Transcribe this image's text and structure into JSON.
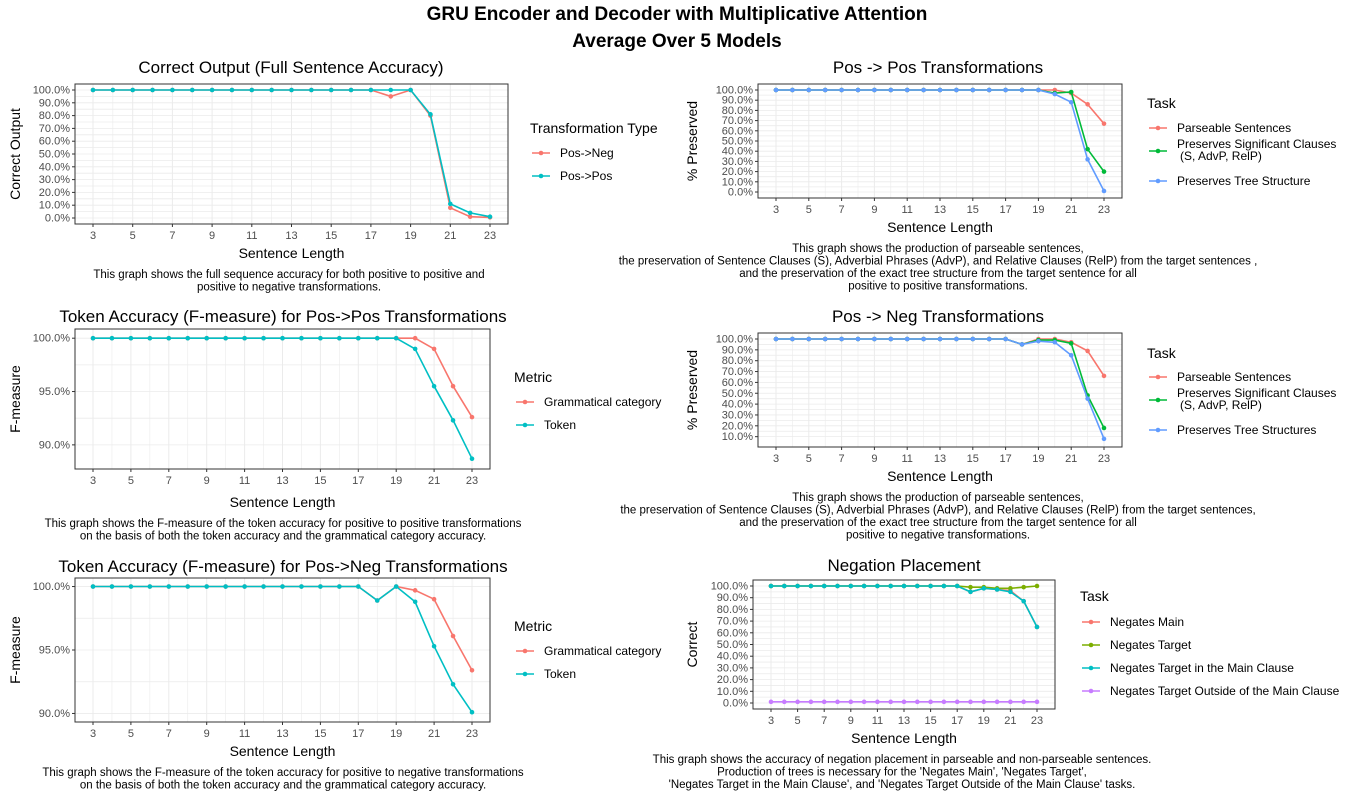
{
  "figure": {
    "title_line1": "GRU Encoder and Decoder with Multiplicative Attention",
    "title_line2": "Average Over 5 Models"
  },
  "colors": {
    "red": "#F8766D",
    "teal": "#00BFC4",
    "green": "#00BA38",
    "blue": "#619CFF",
    "olive": "#7CAE00",
    "purple": "#C77CFF",
    "grid": "#EBEBEB"
  },
  "chart_data": [
    {
      "id": "p1",
      "type": "line",
      "title": "Correct Output (Full Sentence Accuracy)",
      "xlabel": "Sentence Length",
      "ylabel": "Correct Output",
      "xlim": [
        3,
        23
      ],
      "ylim": [
        0,
        100
      ],
      "xticks": [
        3,
        5,
        7,
        9,
        11,
        13,
        15,
        17,
        19,
        21,
        23
      ],
      "yticks": [
        0,
        10,
        20,
        30,
        40,
        50,
        60,
        70,
        80,
        90,
        100
      ],
      "ytick_labels": [
        "0.0%",
        "10.0%",
        "20.0%",
        "30.0%",
        "40.0%",
        "50.0%",
        "60.0%",
        "70.0%",
        "80.0%",
        "90.0%",
        "100.0%"
      ],
      "grid": true,
      "legend_title": "Transformation Type",
      "caption": [
        "This graph shows the full sequence accuracy for both positive to positive and",
        "positive to negative transformations."
      ],
      "x": [
        3,
        4,
        5,
        6,
        7,
        8,
        9,
        10,
        11,
        12,
        13,
        14,
        15,
        16,
        17,
        18,
        19,
        20,
        21,
        22,
        23
      ],
      "series": [
        {
          "name": "Pos->Neg",
          "color": "red",
          "values": [
            100,
            100,
            100,
            100,
            100,
            100,
            100,
            100,
            100,
            100,
            100,
            100,
            100,
            100,
            100,
            95,
            100,
            80,
            8,
            1,
            0.5
          ]
        },
        {
          "name": "Pos->Pos",
          "color": "teal",
          "values": [
            100,
            100,
            100,
            100,
            100,
            100,
            100,
            100,
            100,
            100,
            100,
            100,
            100,
            100,
            100,
            100,
            100,
            81,
            11,
            4,
            1
          ]
        }
      ]
    },
    {
      "id": "p2",
      "type": "line",
      "title": "Pos -> Pos Transformations",
      "xlabel": "Sentence Length",
      "ylabel": "% Preserved",
      "xlim": [
        3,
        23
      ],
      "ylim": [
        0,
        100
      ],
      "xticks": [
        3,
        5,
        7,
        9,
        11,
        13,
        15,
        17,
        19,
        21,
        23
      ],
      "yticks": [
        0,
        10,
        20,
        30,
        40,
        50,
        60,
        70,
        80,
        90,
        100
      ],
      "ytick_labels": [
        "0.0%",
        "10.0%",
        "20.0%",
        "30.0%",
        "40.0%",
        "50.0%",
        "60.0%",
        "70.0%",
        "80.0%",
        "90.0%",
        "100.0%"
      ],
      "grid": true,
      "legend_title": "Task",
      "caption": [
        "This graph shows the production of parseable sentences,",
        "the preservation of Sentence Clauses (S), Adverbial Phrases (AdvP), and Relative Clauses (RelP) from the target sentences ,",
        "and the preservation of the exact tree structure from the target sentence for all",
        "positive to positive transformations."
      ],
      "x": [
        3,
        4,
        5,
        6,
        7,
        8,
        9,
        10,
        11,
        12,
        13,
        14,
        15,
        16,
        17,
        18,
        19,
        20,
        21,
        22,
        23
      ],
      "series": [
        {
          "name": "Parseable Sentences",
          "label_lines": [
            "Parseable Sentences"
          ],
          "color": "red",
          "values": [
            100,
            100,
            100,
            100,
            100,
            100,
            100,
            100,
            100,
            100,
            100,
            100,
            100,
            100,
            100,
            100,
            100,
            100,
            97,
            86,
            67
          ]
        },
        {
          "name": "Preserves Significant Clauses (S, AdvP, RelP)",
          "label_lines": [
            "Preserves Significant Clauses",
            "(S, AdvP, RelP)"
          ],
          "color": "green",
          "values": [
            100,
            100,
            100,
            100,
            100,
            100,
            100,
            100,
            100,
            100,
            100,
            100,
            100,
            100,
            100,
            100,
            100,
            97,
            98,
            42,
            20
          ]
        },
        {
          "name": "Preserves Tree Structure",
          "label_lines": [
            "Preserves Tree Structure"
          ],
          "color": "blue",
          "values": [
            100,
            100,
            100,
            100,
            100,
            100,
            100,
            100,
            100,
            100,
            100,
            100,
            100,
            100,
            100,
            100,
            100,
            96,
            88,
            32,
            1
          ]
        }
      ]
    },
    {
      "id": "p3",
      "type": "line",
      "title": "Token Accuracy (F-measure) for Pos->Pos Transformations",
      "xlabel": "Sentence Length",
      "ylabel": "F-measure",
      "xlim": [
        3,
        23
      ],
      "ylim": [
        88.3,
        100.3
      ],
      "xticks": [
        3,
        5,
        7,
        9,
        11,
        13,
        15,
        17,
        19,
        21,
        23
      ],
      "yticks": [
        90,
        95,
        100
      ],
      "ytick_labels": [
        "90.0%",
        "95.0%",
        "100.0%"
      ],
      "grid": true,
      "legend_title": "Metric",
      "caption": [
        "This graph shows the F-measure of the token accuracy for positive to positive transformations",
        "on the basis of both the token accuracy and the grammatical category accuracy."
      ],
      "x": [
        3,
        4,
        5,
        6,
        7,
        8,
        9,
        10,
        11,
        12,
        13,
        14,
        15,
        16,
        17,
        18,
        19,
        20,
        21,
        22,
        23
      ],
      "series": [
        {
          "name": "Grammatical category",
          "color": "red",
          "values": [
            100,
            100,
            100,
            100,
            100,
            100,
            100,
            100,
            100,
            100,
            100,
            100,
            100,
            100,
            100,
            100,
            100,
            100,
            99,
            95.5,
            92.6
          ]
        },
        {
          "name": "Token",
          "color": "teal",
          "values": [
            100,
            100,
            100,
            100,
            100,
            100,
            100,
            100,
            100,
            100,
            100,
            100,
            100,
            100,
            100,
            100,
            100,
            99,
            95.5,
            92.3,
            88.7
          ]
        }
      ]
    },
    {
      "id": "p4",
      "type": "line",
      "title": "Pos -> Neg Transformations",
      "xlabel": "Sentence Length",
      "ylabel": "% Preserved",
      "xlim": [
        3,
        23
      ],
      "ylim": [
        0,
        100
      ],
      "xticks": [
        3,
        5,
        7,
        9,
        11,
        13,
        15,
        17,
        19,
        21,
        23
      ],
      "yticks": [
        10,
        20,
        30,
        40,
        50,
        60,
        70,
        80,
        90,
        100
      ],
      "ytick_labels": [
        "10.0%",
        "20.0%",
        "30.0%",
        "40.0%",
        "50.0%",
        "60.0%",
        "70.0%",
        "80.0%",
        "90.0%",
        "100.0%"
      ],
      "ylim_override": [
        6,
        100
      ],
      "grid": true,
      "legend_title": "Task",
      "caption": [
        "This graph shows the production of parseable sentences,",
        "the preservation of Sentence Clauses (S), Adverbial Phrases (AdvP), and Relative Clauses (RelP) from the target sentences,",
        "and the preservation of the exact tree structure from the target sentence for all",
        "positive to negative transformations."
      ],
      "x": [
        3,
        4,
        5,
        6,
        7,
        8,
        9,
        10,
        11,
        12,
        13,
        14,
        15,
        16,
        17,
        18,
        19,
        20,
        21,
        22,
        23
      ],
      "series": [
        {
          "name": "Parseable Sentences",
          "label_lines": [
            "Parseable Sentences"
          ],
          "color": "red",
          "values": [
            100,
            100,
            100,
            100,
            100,
            100,
            100,
            100,
            100,
            100,
            100,
            100,
            100,
            100,
            100,
            95,
            100,
            100,
            97,
            89,
            66
          ]
        },
        {
          "name": "Preserves Significant Clauses (S, AdvP, RelP)",
          "label_lines": [
            "Preserves Significant Clauses",
            "(S, AdvP, RelP)"
          ],
          "color": "green",
          "values": [
            100,
            100,
            100,
            100,
            100,
            100,
            100,
            100,
            100,
            100,
            100,
            100,
            100,
            100,
            100,
            95,
            99,
            99,
            96,
            48,
            18
          ]
        },
        {
          "name": "Preserves Tree Structures",
          "label_lines": [
            "Preserves Tree Structures"
          ],
          "color": "blue",
          "values": [
            100,
            100,
            100,
            100,
            100,
            100,
            100,
            100,
            100,
            100,
            100,
            100,
            100,
            100,
            100,
            95,
            98,
            97,
            85,
            45,
            8
          ]
        }
      ]
    },
    {
      "id": "p5",
      "type": "line",
      "title": "Token Accuracy (F-measure) for Pos->Neg Transformations",
      "xlabel": "Sentence Length",
      "ylabel": "F-measure",
      "xlim": [
        3,
        23
      ],
      "ylim": [
        89.8,
        100.2
      ],
      "xticks": [
        3,
        5,
        7,
        9,
        11,
        13,
        15,
        17,
        19,
        21,
        23
      ],
      "yticks": [
        90,
        95,
        100
      ],
      "ytick_labels": [
        "90.0%",
        "95.0%",
        "100.0%"
      ],
      "grid": true,
      "legend_title": "Metric",
      "caption": [
        "This graph shows the F-measure of the token accuracy for positive to negative transformations",
        "on the basis of both the token accuracy and the grammatical category accuracy."
      ],
      "x": [
        3,
        4,
        5,
        6,
        7,
        8,
        9,
        10,
        11,
        12,
        13,
        14,
        15,
        16,
        17,
        18,
        19,
        20,
        21,
        22,
        23
      ],
      "series": [
        {
          "name": "Grammatical category",
          "color": "red",
          "values": [
            100,
            100,
            100,
            100,
            100,
            100,
            100,
            100,
            100,
            100,
            100,
            100,
            100,
            100,
            100,
            98.9,
            100,
            99.7,
            99,
            96.1,
            93.4
          ]
        },
        {
          "name": "Token",
          "color": "teal",
          "values": [
            100,
            100,
            100,
            100,
            100,
            100,
            100,
            100,
            100,
            100,
            100,
            100,
            100,
            100,
            100,
            98.9,
            100,
            98.8,
            95.3,
            92.3,
            90.1
          ]
        }
      ]
    },
    {
      "id": "p6",
      "type": "line",
      "title": "Negation Placement",
      "xlabel": "Sentence Length",
      "ylabel": "Correct",
      "xlim": [
        3,
        23
      ],
      "ylim": [
        0,
        100
      ],
      "xticks": [
        3,
        5,
        7,
        9,
        11,
        13,
        15,
        17,
        19,
        21,
        23
      ],
      "yticks": [
        0,
        10,
        20,
        30,
        40,
        50,
        60,
        70,
        80,
        90,
        100
      ],
      "ytick_labels": [
        "0.0%",
        "10.0%",
        "20.0%",
        "30.0%",
        "40.0%",
        "50.0%",
        "60.0%",
        "70.0%",
        "80.0%",
        "90.0%",
        "100.0%"
      ],
      "grid": true,
      "legend_title": "Task",
      "caption": [
        "This graph shows the accuracy of negation placement in parseable and non-parseable sentences.",
        "Production of trees is necessary for the 'Negates Main', 'Negates Target',",
        "'Negates Target in the Main Clause', and 'Negates Target Outside of the Main Clause' tasks."
      ],
      "x": [
        3,
        4,
        5,
        6,
        7,
        8,
        9,
        10,
        11,
        12,
        13,
        14,
        15,
        16,
        17,
        18,
        19,
        20,
        21,
        22,
        23
      ],
      "series": [
        {
          "name": "Negates Main",
          "color": "red",
          "values": [
            100,
            100,
            100,
            100,
            100,
            100,
            100,
            100,
            100,
            100,
            100,
            100,
            100,
            100,
            100,
            95,
            98,
            97,
            96,
            87,
            65
          ]
        },
        {
          "name": "Negates Target",
          "color": "olive",
          "values": [
            100,
            100,
            100,
            100,
            100,
            100,
            100,
            100,
            100,
            100,
            100,
            100,
            100,
            100,
            100,
            99,
            99,
            98,
            98,
            99,
            100
          ]
        },
        {
          "name": "Negates Target in the Main Clause",
          "color": "teal",
          "values": [
            100,
            100,
            100,
            100,
            100,
            100,
            100,
            100,
            100,
            100,
            100,
            100,
            100,
            100,
            100,
            95,
            98,
            97,
            95,
            87,
            65
          ]
        },
        {
          "name": "Negates Target Outside of the Main Clause",
          "color": "purple",
          "values": [
            1,
            1,
            1,
            1,
            1,
            1,
            1,
            1,
            1,
            1,
            1,
            1,
            1,
            1,
            1,
            1,
            1,
            1,
            1,
            1,
            1
          ]
        }
      ]
    }
  ]
}
